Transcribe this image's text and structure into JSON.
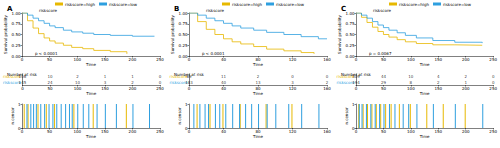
{
  "chart_data": [
    {
      "title": "A",
      "type": "step",
      "legend": "top",
      "legend_title": "riskscore",
      "annotation": "p < 0.0001",
      "x_label": "Time",
      "y_label": "Survival probability",
      "xlim": [
        0,
        250
      ],
      "xticks": [
        0,
        50,
        100,
        150,
        200,
        250
      ],
      "ylim": [
        0,
        1
      ],
      "yticks": [
        {
          "value": 0,
          "label": "0.00"
        },
        {
          "value": 0.25,
          "label": "0.25"
        },
        {
          "value": 0.5,
          "label": "0.50"
        },
        {
          "value": 0.75,
          "label": "0.75"
        },
        {
          "value": 1,
          "label": "1.00"
        }
      ],
      "series": [
        {
          "name": "riskscore=high",
          "color": "#E7B800",
          "x": [
            0,
            10,
            20,
            30,
            40,
            50,
            60,
            75,
            90,
            110,
            130,
            160,
            190
          ],
          "values": [
            1,
            0.82,
            0.65,
            0.52,
            0.42,
            0.35,
            0.3,
            0.25,
            0.2,
            0.17,
            0.13,
            0.1,
            0.05
          ]
        },
        {
          "name": "riskscore=low",
          "color": "#2E9FDF",
          "x": [
            0,
            10,
            20,
            30,
            40,
            50,
            60,
            75,
            90,
            110,
            130,
            160,
            200,
            240
          ],
          "values": [
            1,
            0.95,
            0.88,
            0.82,
            0.76,
            0.7,
            0.66,
            0.6,
            0.56,
            0.53,
            0.5,
            0.48,
            0.46,
            0.46
          ]
        }
      ],
      "risk_table": {
        "title": "Number at risk",
        "x_label": "Time",
        "x": [
          0,
          50,
          100,
          150,
          200,
          250
        ],
        "rows": [
          {
            "name": "riskscore",
            "color": "#E7B800",
            "values": [
              106,
              10,
              2,
              1,
              1,
              0
            ]
          },
          {
            "name": "riskscore",
            "color": "#2E9FDF",
            "values": [
              145,
              24,
              10,
              3,
              2,
              0
            ]
          }
        ]
      },
      "censor": {
        "y_label": "n.censor",
        "x_label": "Time",
        "ylim": [
          0,
          1
        ],
        "yticks": [
          0,
          1
        ],
        "series": [
          {
            "color": "#E7B800",
            "x": [
              5,
              12,
              30,
              45,
              60,
              95,
              130,
              190
            ],
            "values": [
              1,
              1,
              1,
              1,
              1,
              1,
              1,
              1
            ]
          },
          {
            "color": "#2E9FDF",
            "x": [
              8,
              15,
              20,
              25,
              33,
              40,
              48,
              55,
              62,
              70,
              78,
              85,
              90,
              100,
              110,
              120,
              135,
              150,
              170,
              200,
              230
            ],
            "values": [
              1,
              1,
              1,
              1,
              1,
              1,
              1,
              1,
              1,
              1,
              1,
              1,
              1,
              1,
              1,
              1,
              1,
              1,
              1,
              1,
              1
            ]
          }
        ]
      }
    },
    {
      "title": "B",
      "type": "step",
      "legend": "top",
      "legend_title": "riskscore",
      "annotation": "p < 0.0001",
      "x_label": "Time",
      "y_label": "Survival probability",
      "xlim": [
        0,
        160
      ],
      "xticks": [
        0,
        40,
        80,
        120,
        160
      ],
      "ylim": [
        0,
        1
      ],
      "yticks": [
        {
          "value": 0,
          "label": "0.00"
        },
        {
          "value": 0.25,
          "label": "0.25"
        },
        {
          "value": 0.5,
          "label": "0.50"
        },
        {
          "value": 0.75,
          "label": "0.75"
        },
        {
          "value": 1,
          "label": "1.00"
        }
      ],
      "series": [
        {
          "name": "riskscore=high",
          "color": "#E7B800",
          "x": [
            0,
            10,
            20,
            30,
            40,
            50,
            60,
            75,
            90,
            110,
            130,
            145
          ],
          "values": [
            1,
            0.8,
            0.62,
            0.5,
            0.4,
            0.33,
            0.28,
            0.22,
            0.16,
            0.12,
            0.08,
            0.05
          ]
        },
        {
          "name": "riskscore=low",
          "color": "#2E9FDF",
          "x": [
            0,
            10,
            20,
            30,
            40,
            50,
            60,
            75,
            90,
            110,
            130,
            150,
            160
          ],
          "values": [
            1,
            0.95,
            0.88,
            0.82,
            0.76,
            0.7,
            0.65,
            0.6,
            0.55,
            0.5,
            0.45,
            0.4,
            0.4
          ]
        }
      ],
      "risk_table": {
        "title": "Number at risk",
        "x_label": "Time",
        "x": [
          0,
          40,
          80,
          120,
          160
        ],
        "rows": [
          {
            "name": "riskscore",
            "color": "#E7B800",
            "values": [
              69,
              11,
              2,
              0,
              0
            ]
          },
          {
            "name": "riskscore",
            "color": "#2E9FDF",
            "values": [
              183,
              40,
              13,
              3,
              2
            ]
          }
        ]
      },
      "censor": {
        "y_label": "n.censor",
        "x_label": "Time",
        "ylim": [
          0,
          1
        ],
        "yticks": [
          0,
          1
        ],
        "series": [
          {
            "color": "#E7B800",
            "x": [
              10,
              25,
              40,
              60,
              90,
              120
            ],
            "values": [
              1,
              1,
              1,
              1,
              1,
              1
            ]
          },
          {
            "color": "#2E9FDF",
            "x": [
              5,
              12,
              18,
              22,
              30,
              35,
              42,
              50,
              58,
              65,
              72,
              80,
              90,
              100,
              115,
              130,
              150
            ],
            "values": [
              1,
              1,
              1,
              1,
              1,
              1,
              1,
              1,
              1,
              1,
              1,
              1,
              1,
              1,
              1,
              1,
              1
            ]
          }
        ]
      }
    },
    {
      "title": "C",
      "type": "step",
      "legend": "top",
      "legend_title": "riskscore",
      "annotation": "p = 0.0067",
      "x_label": "Time",
      "y_label": "Survival probability",
      "xlim": [
        0,
        250
      ],
      "xticks": [
        0,
        50,
        100,
        150,
        200,
        250
      ],
      "ylim": [
        0,
        1
      ],
      "yticks": [
        {
          "value": 0,
          "label": "0.00"
        },
        {
          "value": 0.25,
          "label": "0.25"
        },
        {
          "value": 0.5,
          "label": "0.50"
        },
        {
          "value": 0.75,
          "label": "0.75"
        },
        {
          "value": 1,
          "label": "1.00"
        }
      ],
      "series": [
        {
          "name": "riskscore=high",
          "color": "#E7B800",
          "x": [
            0,
            10,
            20,
            30,
            40,
            50,
            60,
            75,
            90,
            110,
            140,
            180,
            230
          ],
          "values": [
            1,
            0.9,
            0.78,
            0.67,
            0.57,
            0.5,
            0.44,
            0.38,
            0.33,
            0.29,
            0.26,
            0.25,
            0.25
          ]
        },
        {
          "name": "riskscore=low",
          "color": "#2E9FDF",
          "x": [
            0,
            10,
            20,
            30,
            40,
            50,
            60,
            75,
            90,
            110,
            140,
            180,
            230
          ],
          "values": [
            1,
            0.95,
            0.88,
            0.8,
            0.72,
            0.66,
            0.6,
            0.54,
            0.48,
            0.42,
            0.36,
            0.32,
            0.3
          ]
        }
      ],
      "risk_table": {
        "title": "Number at risk",
        "x_label": "Time",
        "x": [
          0,
          50,
          100,
          150,
          200,
          250
        ],
        "rows": [
          {
            "name": "riskscore",
            "color": "#E7B800",
            "values": [
              309,
              44,
              10,
              4,
              2,
              0
            ]
          },
          {
            "name": "riskscore",
            "color": "#2E9FDF",
            "values": [
              194,
              29,
              8,
              2,
              1,
              0
            ]
          }
        ]
      },
      "censor": {
        "y_label": "n.censor",
        "x_label": "Time",
        "ylim": [
          0,
          1
        ],
        "yticks": [
          0,
          1
        ],
        "series": [
          {
            "color": "#E7B800",
            "x": [
              6,
              14,
              22,
              30,
              38,
              46,
              55,
              65,
              80,
              100,
              130,
              160,
              200
            ],
            "values": [
              1,
              1,
              1,
              1,
              1,
              1,
              1,
              1,
              1,
              1,
              1,
              1,
              1
            ]
          },
          {
            "color": "#2E9FDF",
            "x": [
              5,
              10,
              18,
              26,
              34,
              42,
              50,
              60,
              70,
              85,
              95,
              110,
              140,
              180,
              230
            ],
            "values": [
              1,
              1,
              1,
              1,
              1,
              1,
              1,
              1,
              1,
              1,
              1,
              1,
              1,
              1,
              1
            ]
          }
        ]
      }
    }
  ]
}
